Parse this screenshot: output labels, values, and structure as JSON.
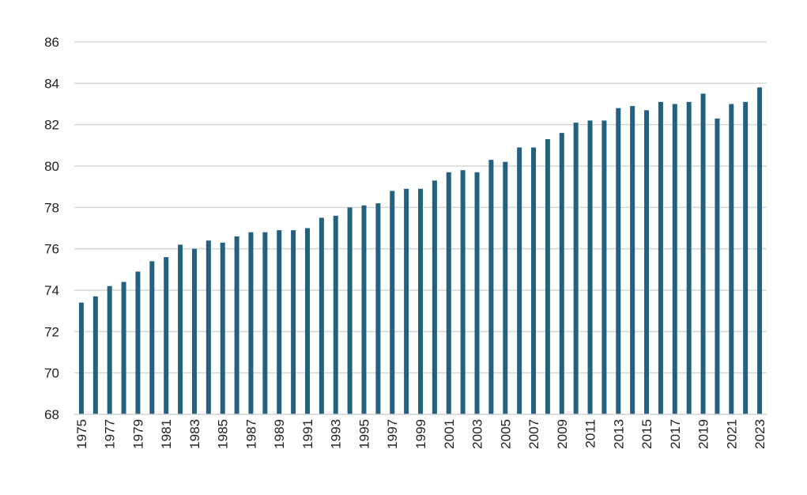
{
  "chart_data": {
    "type": "bar",
    "title": "",
    "xlabel": "",
    "ylabel": "",
    "ylim": [
      68,
      86
    ],
    "y_ticks": [
      68,
      70,
      72,
      74,
      76,
      78,
      80,
      82,
      84,
      86
    ],
    "y_tick_labels": [
      "68",
      "70",
      "72",
      "74",
      "76",
      "78",
      "80",
      "82",
      "84",
      "86"
    ],
    "grid": true,
    "legend": "none",
    "bar_color": "#24607f",
    "categories": [
      "1975",
      "1976",
      "1977",
      "1978",
      "1979",
      "1980",
      "1981",
      "1982",
      "1983",
      "1984",
      "1985",
      "1986",
      "1987",
      "1988",
      "1989",
      "1990",
      "1991",
      "1992",
      "1993",
      "1994",
      "1995",
      "1996",
      "1997",
      "1998",
      "1999",
      "2000",
      "2001",
      "2002",
      "2003",
      "2004",
      "2005",
      "2006",
      "2007",
      "2008",
      "2009",
      "2010",
      "2011",
      "2012",
      "2013",
      "2014",
      "2015",
      "2016",
      "2017",
      "2018",
      "2019",
      "2020",
      "2021",
      "2022",
      "2023"
    ],
    "x_tick_labels": [
      "1975",
      "1977",
      "1979",
      "1981",
      "1983",
      "1985",
      "1987",
      "1989",
      "1991",
      "1993",
      "1995",
      "1997",
      "1999",
      "2001",
      "2003",
      "2005",
      "2007",
      "2009",
      "2011",
      "2013",
      "2015",
      "2017",
      "2019",
      "2021",
      "2023"
    ],
    "values": [
      73.4,
      73.7,
      74.2,
      74.4,
      74.9,
      75.4,
      75.6,
      76.2,
      76.0,
      76.4,
      76.3,
      76.6,
      76.8,
      76.8,
      76.9,
      76.9,
      77.0,
      77.5,
      77.6,
      78.0,
      78.1,
      78.2,
      78.8,
      78.9,
      78.9,
      79.3,
      79.7,
      79.8,
      79.7,
      80.3,
      80.2,
      80.9,
      80.9,
      81.3,
      81.6,
      82.1,
      82.2,
      82.2,
      82.8,
      82.9,
      82.7,
      83.1,
      83.0,
      83.1,
      83.5,
      82.3,
      83.0,
      83.1,
      83.8
    ]
  }
}
